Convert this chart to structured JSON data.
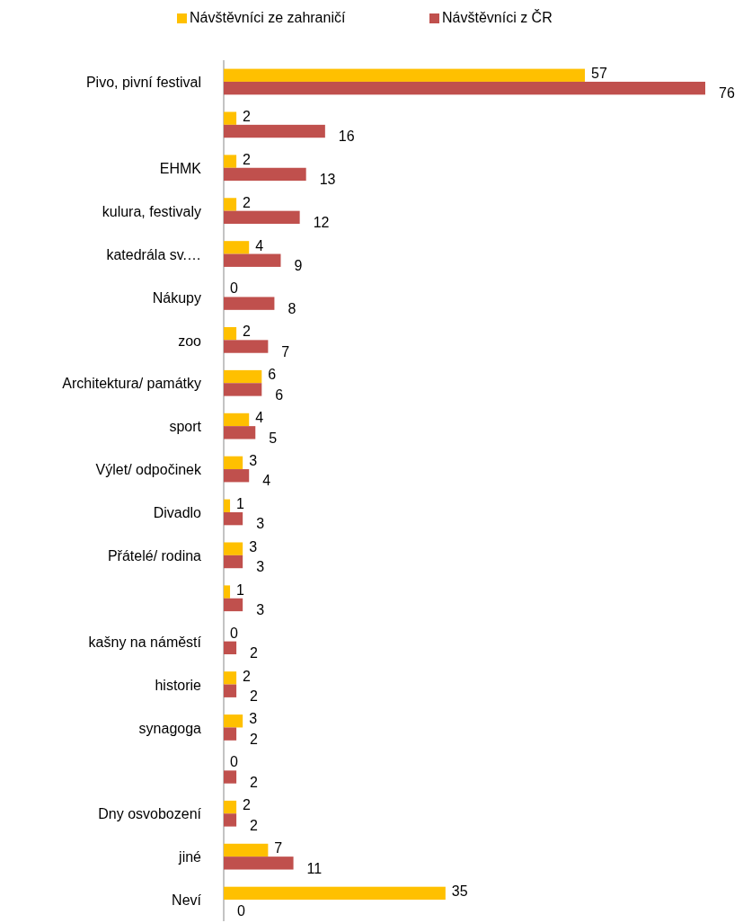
{
  "chart_data": {
    "type": "bar",
    "orientation": "horizontal",
    "data_labels": true,
    "legend": "top",
    "categories": [
      "Pivo, pivní festival",
      null,
      "EHMK",
      "kulura, festivaly",
      "katedrála sv.…",
      "Nákupy",
      "zoo",
      "Architektura/ památky",
      "sport",
      "Výlet/ odpočinek",
      "Divadlo",
      "Přátelé/ rodina",
      null,
      "kašny na náměstí",
      "historie",
      "synagoga",
      null,
      "Dny osvobození",
      "jiné",
      "Neví"
    ],
    "series": [
      {
        "name": "Návštěvníci ze zahraničí",
        "color": "#ffc000",
        "values": [
          57,
          2,
          2,
          2,
          4,
          0,
          2,
          6,
          4,
          3,
          1,
          3,
          1,
          0,
          2,
          3,
          0,
          2,
          7,
          35
        ]
      },
      {
        "name": "Návštěvníci z ČR",
        "color": "#c0504d",
        "values": [
          76,
          16,
          13,
          12,
          9,
          8,
          7,
          6,
          5,
          4,
          3,
          3,
          3,
          2,
          2,
          2,
          2,
          2,
          11,
          0
        ]
      }
    ]
  }
}
